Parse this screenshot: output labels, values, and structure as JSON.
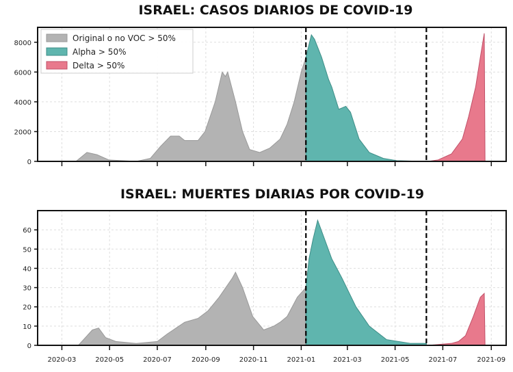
{
  "chart_data": [
    {
      "type": "area",
      "title": "ISRAEL: CASOS DIARIOS DE COVID-19",
      "ylim": [
        0,
        9000
      ],
      "yticks": [
        0,
        2000,
        4000,
        6000,
        8000
      ],
      "xlim": [
        "2020-01-30",
        "2021-09-20"
      ],
      "legend": {
        "placement": "top-left",
        "entries": [
          {
            "label": "Original o no VOC > 50%",
            "color": "#b3b3b3"
          },
          {
            "label": "Alpha > 50%",
            "color": "#5fb5ae"
          },
          {
            "label": "Delta > 50%",
            "color": "#e8798c"
          }
        ]
      },
      "boundaries": [
        "2021-01-07",
        "2021-06-10"
      ],
      "series": [
        {
          "name": "Original o no VOC > 50%",
          "color": "#b3b3b3",
          "points": [
            [
              "2020-03-19",
              0
            ],
            [
              "2020-04-02",
              600
            ],
            [
              "2020-04-15",
              450
            ],
            [
              "2020-04-30",
              100
            ],
            [
              "2020-06-04",
              0
            ],
            [
              "2020-06-22",
              200
            ],
            [
              "2020-07-05",
              1000
            ],
            [
              "2020-07-18",
              1700
            ],
            [
              "2020-07-29",
              1700
            ],
            [
              "2020-08-05",
              1400
            ],
            [
              "2020-08-22",
              1400
            ],
            [
              "2020-08-31",
              2000
            ],
            [
              "2020-09-13",
              4000
            ],
            [
              "2020-09-22",
              6000
            ],
            [
              "2020-09-26",
              5700
            ],
            [
              "2020-09-29",
              6000
            ],
            [
              "2020-10-09",
              4000
            ],
            [
              "2020-10-18",
              2000
            ],
            [
              "2020-10-27",
              800
            ],
            [
              "2020-11-09",
              600
            ],
            [
              "2020-11-22",
              900
            ],
            [
              "2020-12-05",
              1500
            ],
            [
              "2020-12-14",
              2500
            ],
            [
              "2020-12-23",
              4000
            ],
            [
              "2021-01-01",
              6000
            ],
            [
              "2021-01-07",
              7000
            ]
          ]
        },
        {
          "name": "Alpha > 50%",
          "color": "#5fb5ae",
          "points": [
            [
              "2021-01-07",
              7000
            ],
            [
              "2021-01-14",
              8500
            ],
            [
              "2021-01-18",
              8200
            ],
            [
              "2021-01-27",
              7000
            ],
            [
              "2021-02-05",
              5500
            ],
            [
              "2021-02-09",
              5000
            ],
            [
              "2021-02-18",
              3500
            ],
            [
              "2021-02-27",
              3700
            ],
            [
              "2021-03-05",
              3300
            ],
            [
              "2021-03-16",
              1500
            ],
            [
              "2021-03-29",
              600
            ],
            [
              "2021-04-16",
              200
            ],
            [
              "2021-05-03",
              50
            ],
            [
              "2021-06-07",
              0
            ],
            [
              "2021-06-10",
              0
            ]
          ]
        },
        {
          "name": "Delta > 50%",
          "color": "#e8798c",
          "points": [
            [
              "2021-06-12",
              0
            ],
            [
              "2021-06-25",
              100
            ],
            [
              "2021-07-12",
              500
            ],
            [
              "2021-07-26",
              1500
            ],
            [
              "2021-08-03",
              3000
            ],
            [
              "2021-08-12",
              5000
            ],
            [
              "2021-08-18",
              7000
            ],
            [
              "2021-08-23",
              8600
            ],
            [
              "2021-08-24",
              0
            ]
          ]
        }
      ]
    },
    {
      "type": "area",
      "title": "ISRAEL: MUERTES DIARIAS POR COVID-19",
      "ylim": [
        0,
        70
      ],
      "yticks": [
        0,
        10,
        20,
        30,
        40,
        50,
        60
      ],
      "xlim": [
        "2020-01-30",
        "2021-09-20"
      ],
      "xticks": [
        "2020-03",
        "2020-05",
        "2020-07",
        "2020-09",
        "2020-11",
        "2021-01",
        "2021-03",
        "2021-05",
        "2021-07",
        "2021-09"
      ],
      "boundaries": [
        "2021-01-07",
        "2021-06-10"
      ],
      "series": [
        {
          "name": "Original o no VOC > 50%",
          "color": "#b3b3b3",
          "points": [
            [
              "2020-03-22",
              0
            ],
            [
              "2020-04-09",
              8
            ],
            [
              "2020-04-17",
              9
            ],
            [
              "2020-04-26",
              4
            ],
            [
              "2020-05-09",
              2
            ],
            [
              "2020-06-04",
              1
            ],
            [
              "2020-07-01",
              2
            ],
            [
              "2020-07-14",
              6
            ],
            [
              "2020-08-05",
              12
            ],
            [
              "2020-08-22",
              14
            ],
            [
              "2020-09-04",
              18
            ],
            [
              "2020-09-18",
              25
            ],
            [
              "2020-10-05",
              35
            ],
            [
              "2020-10-09",
              38
            ],
            [
              "2020-10-18",
              30
            ],
            [
              "2020-10-31",
              15
            ],
            [
              "2020-11-14",
              8
            ],
            [
              "2020-11-27",
              10
            ],
            [
              "2020-12-05",
              12
            ],
            [
              "2020-12-14",
              15
            ],
            [
              "2020-12-27",
              25
            ],
            [
              "2021-01-07",
              30
            ]
          ]
        },
        {
          "name": "Alpha > 50%",
          "color": "#5fb5ae",
          "points": [
            [
              "2021-01-07",
              30
            ],
            [
              "2021-01-11",
              45
            ],
            [
              "2021-01-16",
              55
            ],
            [
              "2021-01-22",
              65
            ],
            [
              "2021-01-31",
              55
            ],
            [
              "2021-02-09",
              45
            ],
            [
              "2021-02-22",
              35
            ],
            [
              "2021-03-12",
              20
            ],
            [
              "2021-03-29",
              10
            ],
            [
              "2021-04-20",
              3
            ],
            [
              "2021-05-21",
              1
            ],
            [
              "2021-06-10",
              1
            ]
          ]
        },
        {
          "name": "Delta > 50%",
          "color": "#e8798c",
          "points": [
            [
              "2021-06-12",
              0
            ],
            [
              "2021-07-12",
              1
            ],
            [
              "2021-07-21",
              2
            ],
            [
              "2021-07-30",
              5
            ],
            [
              "2021-08-09",
              15
            ],
            [
              "2021-08-18",
              25
            ],
            [
              "2021-08-23",
              27
            ],
            [
              "2021-08-24",
              0
            ]
          ]
        }
      ]
    }
  ]
}
